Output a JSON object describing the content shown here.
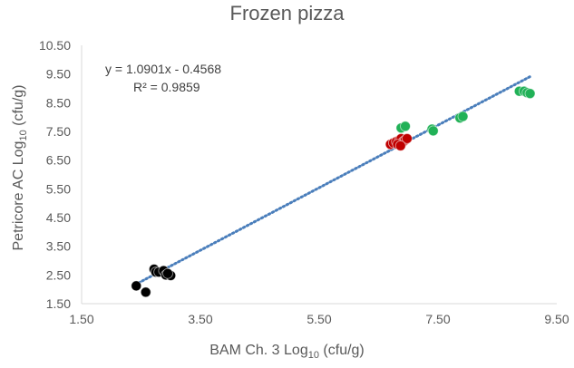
{
  "chart_data": {
    "type": "scatter",
    "title": "Frozen pizza",
    "xlabel": {
      "pre": "BAM Ch. 3 Log",
      "sub": "10",
      "post": " (cfu/g)"
    },
    "ylabel": {
      "pre": "Petricore AC Log",
      "sub": "10",
      "post": " (cfu/g)"
    },
    "xlim": [
      1.5,
      9.5
    ],
    "ylim": [
      1.5,
      10.5
    ],
    "x_ticks": [
      "1.50",
      "3.50",
      "5.50",
      "7.50",
      "9.50"
    ],
    "y_ticks": [
      "1.50",
      "2.50",
      "3.50",
      "4.50",
      "5.50",
      "6.50",
      "7.50",
      "8.50",
      "9.50",
      "10.50"
    ],
    "grid": false,
    "trendline": {
      "equation": "y = 1.0901x - 0.4568",
      "r_squared": "R² = 0.9859",
      "slope": 1.0901,
      "intercept": -0.4568,
      "x_range": [
        2.4,
        9.05
      ],
      "color": "#4a7ebb",
      "style": "dotted"
    },
    "series": [
      {
        "color": "#000000",
        "points": [
          [
            2.42,
            2.12
          ],
          [
            2.58,
            1.9
          ],
          [
            2.72,
            2.7
          ],
          [
            2.75,
            2.6
          ],
          [
            2.8,
            2.6
          ],
          [
            2.88,
            2.65
          ],
          [
            2.92,
            2.5
          ],
          [
            3.0,
            2.48
          ],
          [
            2.95,
            2.55
          ]
        ]
      },
      {
        "color": "#c00000",
        "points": [
          [
            6.7,
            7.05
          ],
          [
            6.75,
            7.1
          ],
          [
            6.8,
            7.15
          ],
          [
            6.85,
            7.2
          ],
          [
            6.88,
            7.25
          ],
          [
            6.9,
            7.1
          ],
          [
            6.92,
            7.15
          ],
          [
            6.95,
            7.2
          ],
          [
            6.98,
            7.25
          ],
          [
            6.82,
            7.05
          ],
          [
            6.87,
            7.0
          ]
        ]
      },
      {
        "color": "#21b157",
        "points": [
          [
            6.88,
            7.62
          ],
          [
            6.95,
            7.68
          ],
          [
            7.4,
            7.58
          ],
          [
            7.42,
            7.52
          ],
          [
            7.87,
            7.97
          ],
          [
            7.92,
            8.02
          ],
          [
            8.87,
            8.9
          ],
          [
            8.95,
            8.9
          ],
          [
            9.0,
            8.85
          ],
          [
            9.05,
            8.82
          ]
        ]
      }
    ]
  }
}
